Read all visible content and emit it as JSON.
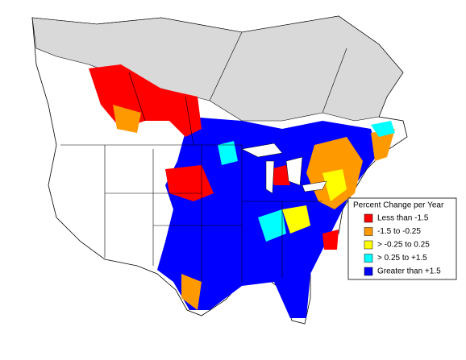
{
  "legend": {
    "title": "Percent Change per Year",
    "items": [
      {
        "label": "Less than -1.5",
        "color": "#ff0000"
      },
      {
        "label": "-1.5 to -0.25",
        "color": "#ff9900"
      },
      {
        "label": "> -0.25 to 0.25",
        "color": "#ffff00"
      },
      {
        "label": "> 0.25 to +1.5",
        "color": "#00ffff"
      },
      {
        "label": "Greater than +1.5",
        "color": "#0000ff"
      }
    ]
  }
}
